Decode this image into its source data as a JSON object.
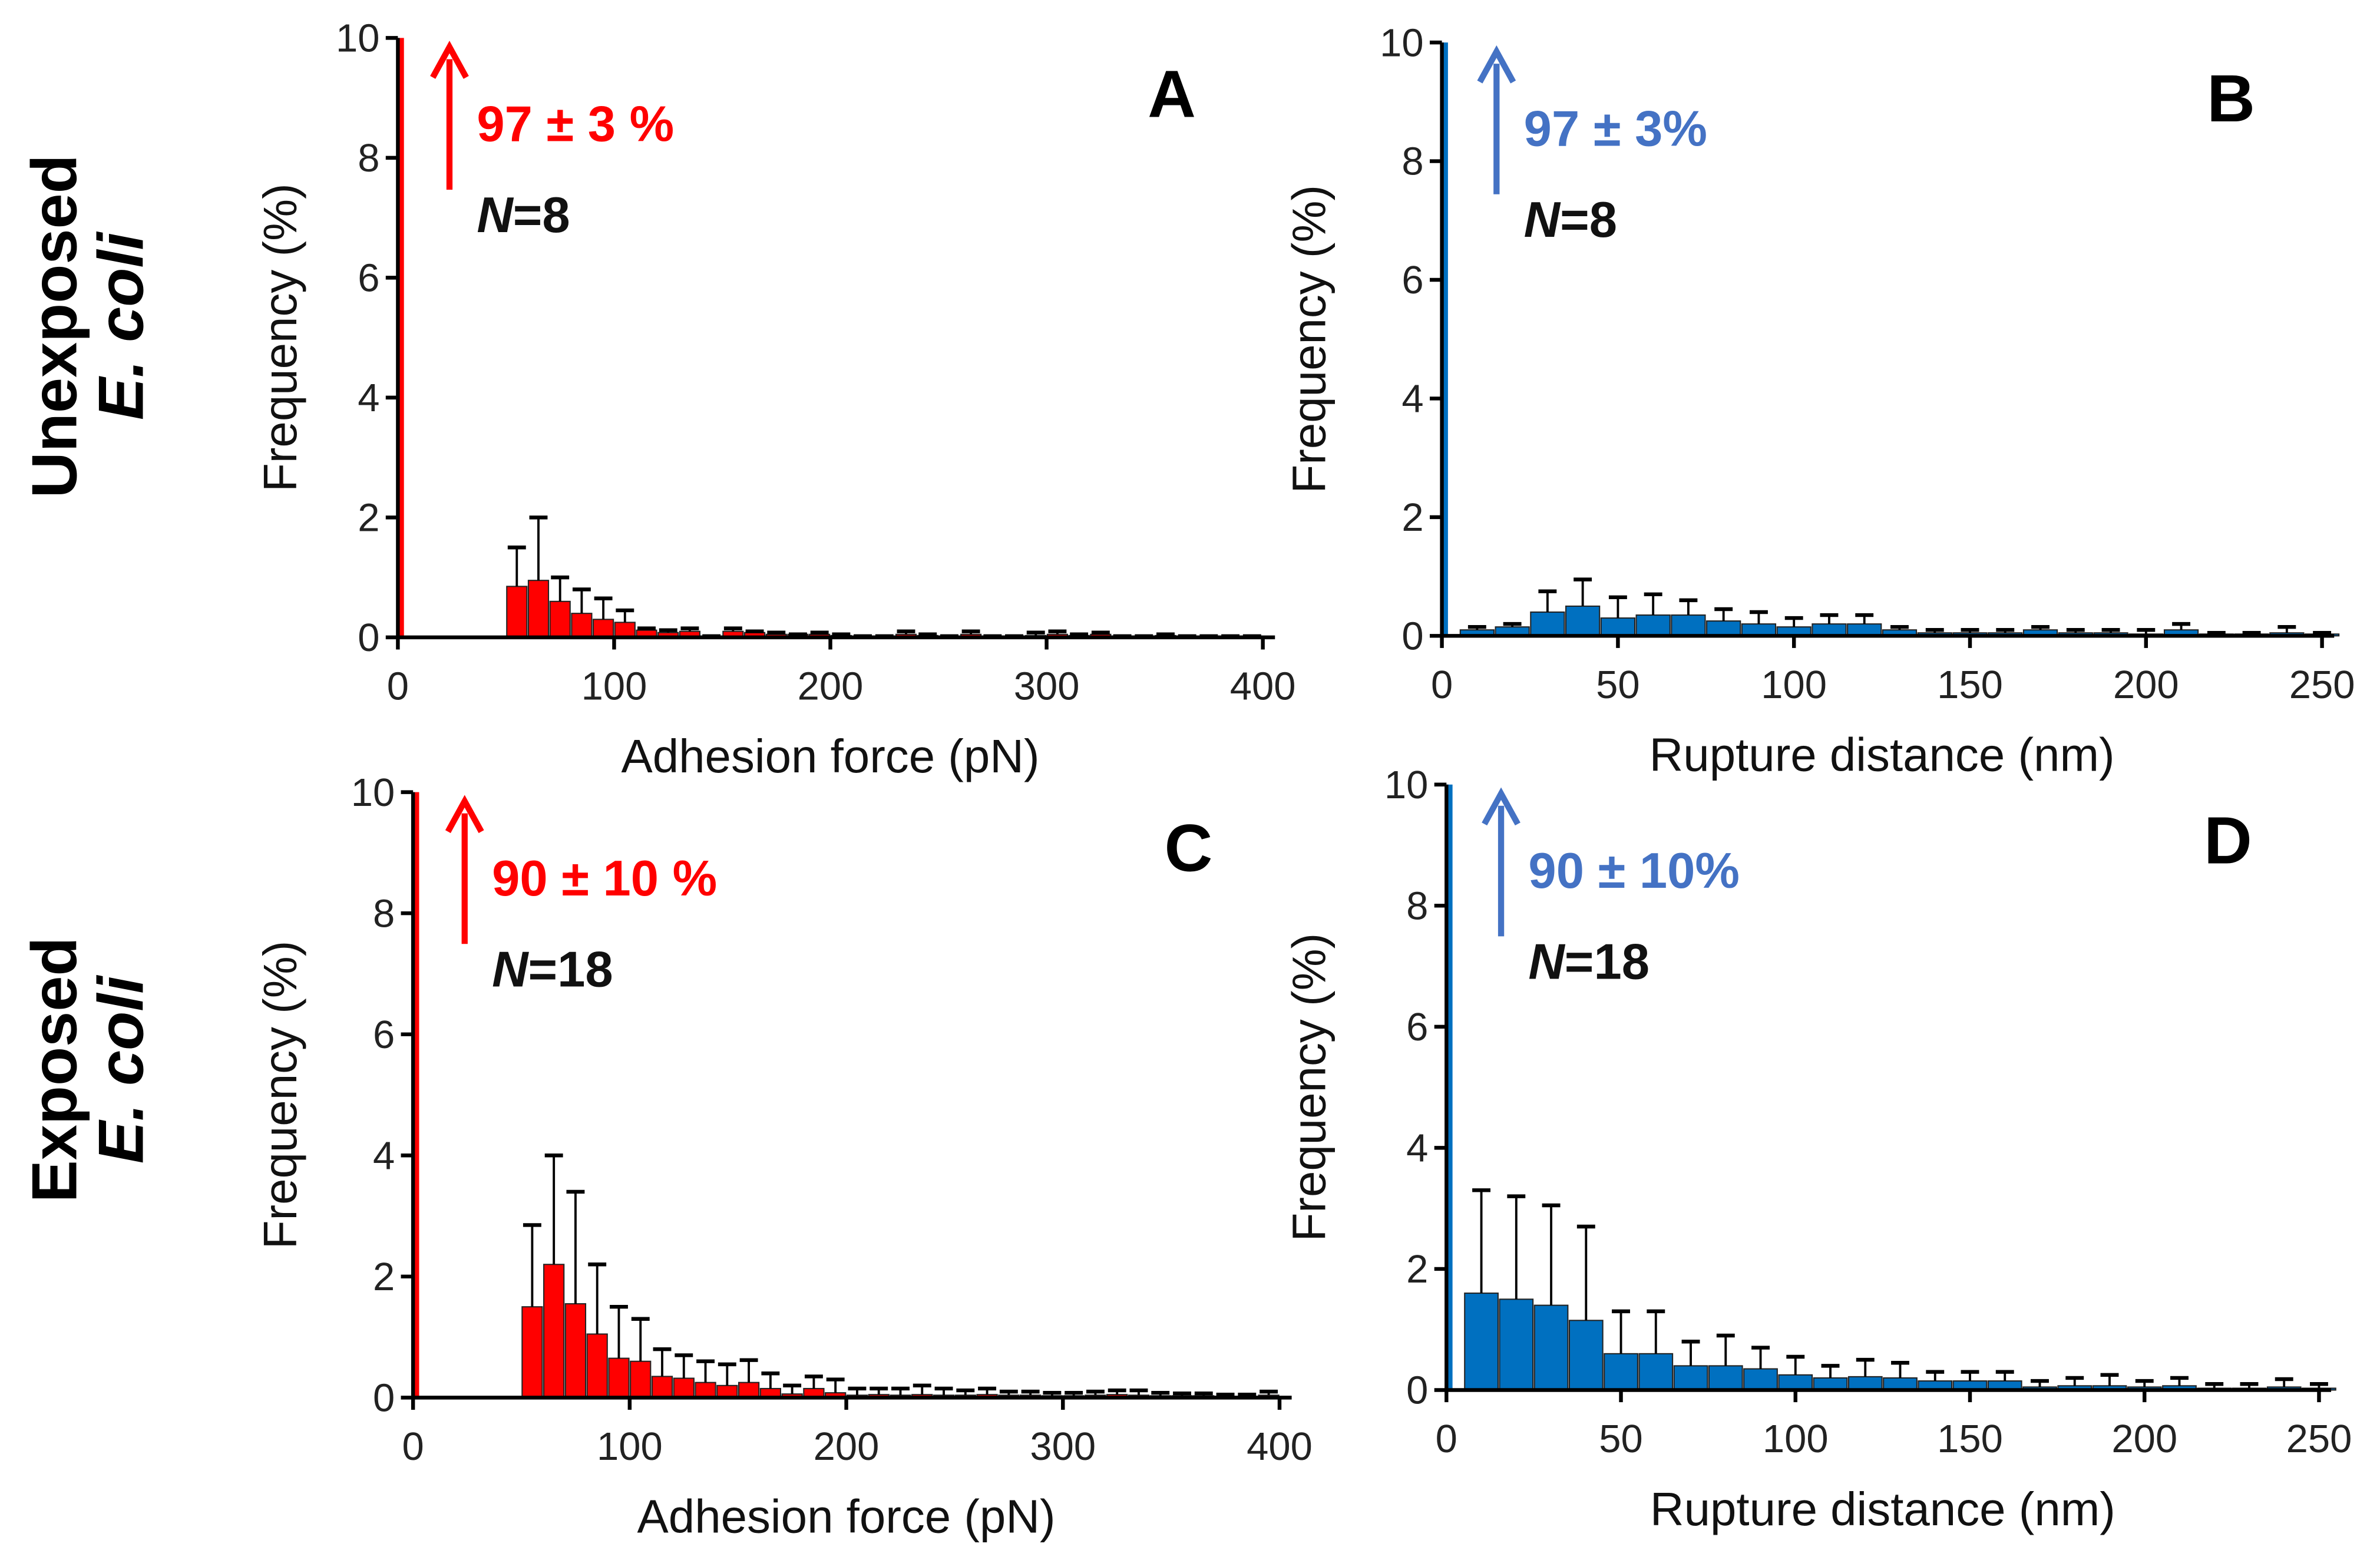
{
  "row_labels": [
    {
      "line1": "Unexposed",
      "line2": "E. coli"
    },
    {
      "line1": "Exposed",
      "line2": "E. coli"
    }
  ],
  "colors": {
    "red": "#ff0000",
    "blue": "#0070c0",
    "blue_text": "#4472c4"
  },
  "chart_data": [
    {
      "type": "bar",
      "panel": "A",
      "xlabel": "Adhesion force (pN)",
      "ylabel": "Frequency  (%)",
      "xlim": [
        0,
        400
      ],
      "ylim": [
        0,
        10
      ],
      "xticks": [
        "0",
        "100",
        "200",
        "300",
        "400"
      ],
      "yticks": [
        "0",
        "2",
        "4",
        "6",
        "8",
        "10"
      ],
      "bin_width": 10,
      "first_bin": {
        "x": 0,
        "value": 97,
        "label": "97 ± 3 %",
        "n": "N",
        "n_value": "=8"
      },
      "x": [
        55,
        65,
        75,
        85,
        95,
        105,
        115,
        125,
        135,
        145,
        155,
        165,
        175,
        185,
        195,
        205,
        215,
        225,
        235,
        245,
        255,
        265,
        275,
        285,
        295,
        305,
        315,
        325,
        335,
        345,
        355,
        365,
        375,
        385,
        395
      ],
      "values": [
        0.85,
        0.95,
        0.6,
        0.4,
        0.3,
        0.25,
        0.12,
        0.08,
        0.1,
        0.02,
        0.1,
        0.08,
        0.05,
        0.05,
        0.05,
        0.03,
        0.02,
        0.02,
        0.05,
        0.03,
        0.02,
        0.05,
        0.02,
        0.02,
        0.03,
        0.05,
        0.03,
        0.05,
        0.02,
        0.02,
        0.03,
        0.02,
        0.02,
        0.02,
        0.02
      ],
      "err_top": [
        1.5,
        2.0,
        1.0,
        0.8,
        0.65,
        0.45,
        0.15,
        0.12,
        0.15,
        0.02,
        0.15,
        0.1,
        0.08,
        0.05,
        0.08,
        0.05,
        0.02,
        0.02,
        0.1,
        0.05,
        0.02,
        0.1,
        0.02,
        0.02,
        0.08,
        0.1,
        0.05,
        0.08,
        0.02,
        0.02,
        0.05,
        0.02,
        0.02,
        0.02,
        0.02
      ]
    },
    {
      "type": "bar",
      "panel": "B",
      "xlabel": "Rupture distance (nm)",
      "ylabel": "Frequency  (%)",
      "xlim": [
        0,
        250
      ],
      "ylim": [
        0,
        10
      ],
      "xticks": [
        "0",
        "50",
        "100",
        "150",
        "200",
        "250"
      ],
      "yticks": [
        "0",
        "2",
        "4",
        "6",
        "8",
        "10"
      ],
      "bin_width": 10,
      "first_bin": {
        "x": 0,
        "value": 97,
        "label": "97 ± 3%",
        "n": "N",
        "n_value": "=8"
      },
      "x": [
        10,
        20,
        30,
        40,
        50,
        60,
        70,
        80,
        90,
        100,
        110,
        120,
        130,
        140,
        150,
        160,
        170,
        180,
        190,
        200,
        210,
        220,
        230,
        240,
        250
      ],
      "values": [
        0.1,
        0.15,
        0.4,
        0.5,
        0.3,
        0.35,
        0.35,
        0.25,
        0.2,
        0.15,
        0.2,
        0.2,
        0.1,
        0.05,
        0.05,
        0.05,
        0.1,
        0.05,
        0.05,
        0.03,
        0.1,
        0.03,
        0.03,
        0.05,
        0.03
      ],
      "err_top": [
        0.15,
        0.2,
        0.75,
        0.95,
        0.65,
        0.7,
        0.6,
        0.45,
        0.4,
        0.3,
        0.35,
        0.35,
        0.15,
        0.1,
        0.1,
        0.1,
        0.15,
        0.1,
        0.1,
        0.1,
        0.2,
        0.05,
        0.05,
        0.15,
        0.05
      ]
    },
    {
      "type": "bar",
      "panel": "C",
      "xlabel": "Adhesion force (pN)",
      "ylabel": "Frequency  (%)",
      "xlim": [
        0,
        400
      ],
      "ylim": [
        0,
        10
      ],
      "xticks": [
        "0",
        "100",
        "200",
        "300",
        "400"
      ],
      "yticks": [
        "0",
        "2",
        "4",
        "6",
        "8",
        "10"
      ],
      "bin_width": 10,
      "first_bin": {
        "x": 0,
        "value": 90,
        "label": "90 ± 10 %",
        "n": "N",
        "n_value": "=18"
      },
      "x": [
        55,
        65,
        75,
        85,
        95,
        105,
        115,
        125,
        135,
        145,
        155,
        165,
        175,
        185,
        195,
        205,
        215,
        225,
        235,
        245,
        255,
        265,
        275,
        285,
        295,
        305,
        315,
        325,
        335,
        345,
        355,
        365,
        375,
        385,
        395
      ],
      "values": [
        1.5,
        2.2,
        1.55,
        1.05,
        0.65,
        0.6,
        0.35,
        0.32,
        0.25,
        0.2,
        0.25,
        0.15,
        0.06,
        0.15,
        0.08,
        0.04,
        0.05,
        0.04,
        0.05,
        0.04,
        0.04,
        0.05,
        0.04,
        0.04,
        0.03,
        0.03,
        0.04,
        0.05,
        0.04,
        0.03,
        0.03,
        0.03,
        0.02,
        0.02,
        0.04
      ],
      "err_top": [
        2.85,
        4.0,
        3.4,
        2.2,
        1.5,
        1.3,
        0.8,
        0.7,
        0.6,
        0.55,
        0.62,
        0.4,
        0.2,
        0.35,
        0.3,
        0.15,
        0.15,
        0.15,
        0.2,
        0.15,
        0.12,
        0.15,
        0.1,
        0.1,
        0.08,
        0.08,
        0.1,
        0.12,
        0.12,
        0.08,
        0.07,
        0.07,
        0.05,
        0.05,
        0.1
      ]
    },
    {
      "type": "bar",
      "panel": "D",
      "xlabel": "Rupture distance (nm)",
      "ylabel": "Frequency  (%)",
      "xlim": [
        0,
        250
      ],
      "ylim": [
        0,
        10
      ],
      "xticks": [
        "0",
        "50",
        "100",
        "150",
        "200",
        "250"
      ],
      "yticks": [
        "0",
        "2",
        "4",
        "6",
        "8",
        "10"
      ],
      "bin_width": 10,
      "first_bin": {
        "x": 0,
        "value": 90,
        "label": "90 ± 10%",
        "n": "N",
        "n_value": "=18"
      },
      "x": [
        10,
        20,
        30,
        40,
        50,
        60,
        70,
        80,
        90,
        100,
        110,
        120,
        130,
        140,
        150,
        160,
        170,
        180,
        190,
        200,
        210,
        220,
        230,
        240,
        250
      ],
      "values": [
        1.6,
        1.5,
        1.4,
        1.15,
        0.6,
        0.6,
        0.4,
        0.4,
        0.35,
        0.25,
        0.2,
        0.22,
        0.2,
        0.15,
        0.15,
        0.15,
        0.05,
        0.07,
        0.07,
        0.05,
        0.07,
        0.03,
        0.03,
        0.05,
        0.03
      ],
      "err_top": [
        3.3,
        3.2,
        3.05,
        2.7,
        1.3,
        1.3,
        0.8,
        0.9,
        0.7,
        0.55,
        0.4,
        0.5,
        0.45,
        0.3,
        0.3,
        0.3,
        0.15,
        0.2,
        0.25,
        0.15,
        0.2,
        0.1,
        0.1,
        0.18,
        0.1
      ]
    }
  ]
}
